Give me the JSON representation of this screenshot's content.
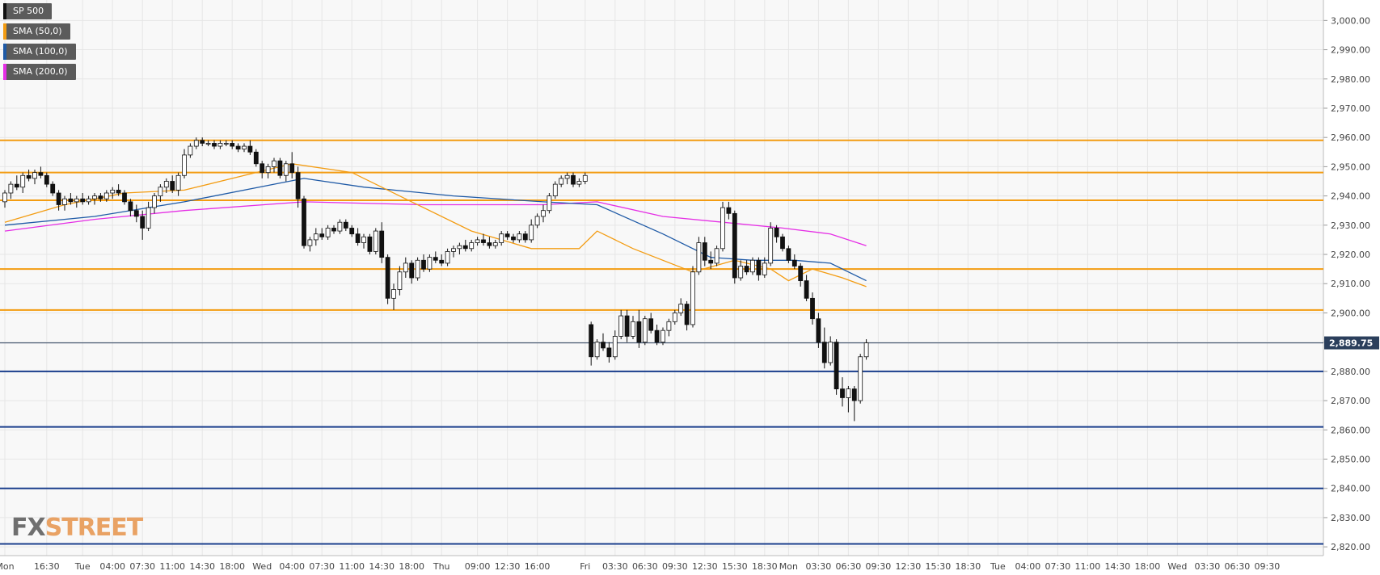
{
  "instrument": "SP 500",
  "legend": [
    {
      "label": "SP 500",
      "color": "#111111"
    },
    {
      "label": "SMA (50,0)",
      "color": "#f39c12"
    },
    {
      "label": "SMA (100,0)",
      "color": "#1f5aa6"
    },
    {
      "label": "SMA (200,0)",
      "color": "#e52ee5"
    }
  ],
  "watermark": {
    "part1": "FX",
    "part2": "STREET"
  },
  "last_price_label": "2,889.75",
  "colors": {
    "resistance": "#f39c12",
    "support": "#1a3e8c",
    "sma50": "#f39c12",
    "sma100": "#1f5aa6",
    "sma200": "#e52ee5",
    "grid": "#e6e6e6",
    "background": "#f8f8f8",
    "price_tag": "#2b3f5c"
  },
  "chart_data": {
    "type": "candlestick",
    "ylim": [
      2817,
      3007
    ],
    "y_ticks": [
      "2,820.00",
      "2,830.00",
      "2,840.00",
      "2,850.00",
      "2,860.00",
      "2,870.00",
      "2,880.00",
      "2,890.00",
      "2,900.00",
      "2,910.00",
      "2,920.00",
      "2,930.00",
      "2,940.00",
      "2,950.00",
      "2,960.00",
      "2,970.00",
      "2,980.00",
      "2,990.00",
      "3,000.00"
    ],
    "x_ticks": [
      "Mon",
      "16:30",
      "Tue",
      "04:00",
      "07:30",
      "11:00",
      "14:30",
      "18:00",
      "Wed",
      "04:00",
      "07:30",
      "11:00",
      "14:30",
      "18:00",
      "Thu",
      "09:00",
      "12:30",
      "16:00",
      "Fri",
      "03:30",
      "06:30",
      "09:30",
      "12:30",
      "15:30",
      "18:30",
      "Mon",
      "03:30",
      "06:30",
      "09:30",
      "12:30",
      "15:30",
      "18:30",
      "Tue",
      "04:00",
      "07:30",
      "11:00",
      "14:30",
      "18:00",
      "Wed",
      "03:30",
      "06:30",
      "09:30"
    ],
    "x_tick_index": [
      0,
      7,
      13,
      18,
      23,
      28,
      33,
      38,
      43,
      48,
      53,
      58,
      63,
      68,
      73,
      79,
      84,
      89,
      97,
      102,
      107,
      112,
      117,
      122,
      127,
      131,
      136,
      141,
      146,
      151,
      156,
      161,
      166,
      171,
      176,
      181,
      186,
      191,
      196,
      201,
      206,
      211
    ],
    "resistance_levels": [
      2959,
      2948,
      2938.5,
      2915,
      2901
    ],
    "support_levels": [
      2880,
      2861,
      2840,
      2821
    ],
    "last_price": 2889.75,
    "candles": [
      {
        "o": 2938,
        "h": 2942,
        "l": 2936,
        "c": 2941
      },
      {
        "o": 2941,
        "h": 2945,
        "l": 2939,
        "c": 2944
      },
      {
        "o": 2944,
        "h": 2947,
        "l": 2942,
        "c": 2943
      },
      {
        "o": 2943,
        "h": 2948,
        "l": 2941,
        "c": 2947
      },
      {
        "o": 2947,
        "h": 2949,
        "l": 2945,
        "c": 2946
      },
      {
        "o": 2946,
        "h": 2949,
        "l": 2944,
        "c": 2948
      },
      {
        "o": 2948,
        "h": 2950,
        "l": 2946,
        "c": 2947
      },
      {
        "o": 2947,
        "h": 2948,
        "l": 2943,
        "c": 2944
      },
      {
        "o": 2944,
        "h": 2945,
        "l": 2940,
        "c": 2941
      },
      {
        "o": 2941,
        "h": 2942,
        "l": 2935,
        "c": 2937
      },
      {
        "o": 2937,
        "h": 2940,
        "l": 2935,
        "c": 2939
      },
      {
        "o": 2939,
        "h": 2941,
        "l": 2937,
        "c": 2938
      },
      {
        "o": 2938,
        "h": 2940,
        "l": 2936,
        "c": 2939
      },
      {
        "o": 2939,
        "h": 2941,
        "l": 2937,
        "c": 2938
      },
      {
        "o": 2938,
        "h": 2940,
        "l": 2937,
        "c": 2939
      },
      {
        "o": 2939,
        "h": 2941,
        "l": 2937,
        "c": 2940
      },
      {
        "o": 2940,
        "h": 2941,
        "l": 2938,
        "c": 2939
      },
      {
        "o": 2939,
        "h": 2942,
        "l": 2938,
        "c": 2941
      },
      {
        "o": 2941,
        "h": 2943,
        "l": 2939,
        "c": 2942
      },
      {
        "o": 2942,
        "h": 2944,
        "l": 2940,
        "c": 2941
      },
      {
        "o": 2941,
        "h": 2942,
        "l": 2937,
        "c": 2938
      },
      {
        "o": 2938,
        "h": 2939,
        "l": 2933,
        "c": 2935
      },
      {
        "o": 2935,
        "h": 2937,
        "l": 2931,
        "c": 2933
      },
      {
        "o": 2933,
        "h": 2935,
        "l": 2925,
        "c": 2929
      },
      {
        "o": 2929,
        "h": 2938,
        "l": 2928,
        "c": 2936
      },
      {
        "o": 2936,
        "h": 2941,
        "l": 2934,
        "c": 2940
      },
      {
        "o": 2940,
        "h": 2944,
        "l": 2938,
        "c": 2943
      },
      {
        "o": 2943,
        "h": 2946,
        "l": 2941,
        "c": 2945
      },
      {
        "o": 2945,
        "h": 2947,
        "l": 2941,
        "c": 2942
      },
      {
        "o": 2942,
        "h": 2948,
        "l": 2940,
        "c": 2947
      },
      {
        "o": 2947,
        "h": 2956,
        "l": 2946,
        "c": 2954
      },
      {
        "o": 2954,
        "h": 2958,
        "l": 2953,
        "c": 2957
      },
      {
        "o": 2957,
        "h": 2960,
        "l": 2956,
        "c": 2959
      },
      {
        "o": 2959,
        "h": 2960,
        "l": 2957,
        "c": 2958
      },
      {
        "o": 2958,
        "h": 2959,
        "l": 2957,
        "c": 2958
      },
      {
        "o": 2958,
        "h": 2959,
        "l": 2956,
        "c": 2957
      },
      {
        "o": 2957,
        "h": 2959,
        "l": 2956,
        "c": 2958
      },
      {
        "o": 2958,
        "h": 2959,
        "l": 2957,
        "c": 2958
      },
      {
        "o": 2958,
        "h": 2959,
        "l": 2956,
        "c": 2957
      },
      {
        "o": 2957,
        "h": 2958,
        "l": 2955,
        "c": 2956
      },
      {
        "o": 2956,
        "h": 2958,
        "l": 2955,
        "c": 2957
      },
      {
        "o": 2957,
        "h": 2959,
        "l": 2954,
        "c": 2955
      },
      {
        "o": 2955,
        "h": 2956,
        "l": 2950,
        "c": 2951
      },
      {
        "o": 2951,
        "h": 2952,
        "l": 2946,
        "c": 2948
      },
      {
        "o": 2948,
        "h": 2951,
        "l": 2946,
        "c": 2950
      },
      {
        "o": 2950,
        "h": 2953,
        "l": 2948,
        "c": 2952
      },
      {
        "o": 2952,
        "h": 2953,
        "l": 2946,
        "c": 2947
      },
      {
        "o": 2947,
        "h": 2952,
        "l": 2945,
        "c": 2951
      },
      {
        "o": 2951,
        "h": 2955,
        "l": 2946,
        "c": 2948
      },
      {
        "o": 2948,
        "h": 2950,
        "l": 2936,
        "c": 2939
      },
      {
        "o": 2939,
        "h": 2940,
        "l": 2922,
        "c": 2923
      },
      {
        "o": 2923,
        "h": 2926,
        "l": 2921,
        "c": 2925
      },
      {
        "o": 2925,
        "h": 2929,
        "l": 2923,
        "c": 2927
      },
      {
        "o": 2927,
        "h": 2929,
        "l": 2925,
        "c": 2926
      },
      {
        "o": 2926,
        "h": 2930,
        "l": 2925,
        "c": 2929
      },
      {
        "o": 2929,
        "h": 2930,
        "l": 2927,
        "c": 2928
      },
      {
        "o": 2928,
        "h": 2932,
        "l": 2927,
        "c": 2931
      },
      {
        "o": 2931,
        "h": 2932,
        "l": 2928,
        "c": 2929
      },
      {
        "o": 2929,
        "h": 2930,
        "l": 2926,
        "c": 2927
      },
      {
        "o": 2927,
        "h": 2929,
        "l": 2923,
        "c": 2924
      },
      {
        "o": 2924,
        "h": 2927,
        "l": 2922,
        "c": 2926
      },
      {
        "o": 2926,
        "h": 2927,
        "l": 2920,
        "c": 2921
      },
      {
        "o": 2921,
        "h": 2929,
        "l": 2920,
        "c": 2928
      },
      {
        "o": 2928,
        "h": 2931,
        "l": 2917,
        "c": 2919
      },
      {
        "o": 2919,
        "h": 2920,
        "l": 2903,
        "c": 2905
      },
      {
        "o": 2905,
        "h": 2910,
        "l": 2901,
        "c": 2908
      },
      {
        "o": 2908,
        "h": 2916,
        "l": 2906,
        "c": 2914
      },
      {
        "o": 2914,
        "h": 2919,
        "l": 2912,
        "c": 2917
      },
      {
        "o": 2917,
        "h": 2918,
        "l": 2910,
        "c": 2912
      },
      {
        "o": 2912,
        "h": 2919,
        "l": 2911,
        "c": 2918
      },
      {
        "o": 2918,
        "h": 2920,
        "l": 2914,
        "c": 2915
      },
      {
        "o": 2915,
        "h": 2920,
        "l": 2914,
        "c": 2919
      },
      {
        "o": 2919,
        "h": 2921,
        "l": 2917,
        "c": 2918
      },
      {
        "o": 2918,
        "h": 2920,
        "l": 2916,
        "c": 2917
      },
      {
        "o": 2917,
        "h": 2922,
        "l": 2916,
        "c": 2921
      },
      {
        "o": 2921,
        "h": 2923,
        "l": 2919,
        "c": 2922
      },
      {
        "o": 2922,
        "h": 2924,
        "l": 2920,
        "c": 2923
      },
      {
        "o": 2923,
        "h": 2925,
        "l": 2921,
        "c": 2922
      },
      {
        "o": 2922,
        "h": 2925,
        "l": 2921,
        "c": 2924
      },
      {
        "o": 2924,
        "h": 2926,
        "l": 2923,
        "c": 2925
      },
      {
        "o": 2925,
        "h": 2927,
        "l": 2923,
        "c": 2924
      },
      {
        "o": 2924,
        "h": 2926,
        "l": 2922,
        "c": 2923
      },
      {
        "o": 2923,
        "h": 2925,
        "l": 2922,
        "c": 2924
      },
      {
        "o": 2924,
        "h": 2928,
        "l": 2923,
        "c": 2927
      },
      {
        "o": 2927,
        "h": 2928,
        "l": 2925,
        "c": 2926
      },
      {
        "o": 2926,
        "h": 2927,
        "l": 2924,
        "c": 2925
      },
      {
        "o": 2925,
        "h": 2928,
        "l": 2924,
        "c": 2927
      },
      {
        "o": 2927,
        "h": 2928,
        "l": 2924,
        "c": 2925
      },
      {
        "o": 2925,
        "h": 2932,
        "l": 2924,
        "c": 2930
      },
      {
        "o": 2930,
        "h": 2934,
        "l": 2929,
        "c": 2933
      },
      {
        "o": 2933,
        "h": 2937,
        "l": 2931,
        "c": 2935
      },
      {
        "o": 2935,
        "h": 2941,
        "l": 2934,
        "c": 2940
      },
      {
        "o": 2940,
        "h": 2945,
        "l": 2939,
        "c": 2944
      },
      {
        "o": 2944,
        "h": 2947,
        "l": 2943,
        "c": 2946
      },
      {
        "o": 2946,
        "h": 2948,
        "l": 2944,
        "c": 2947
      },
      {
        "o": 2947,
        "h": 2948,
        "l": 2943,
        "c": 2944
      },
      {
        "o": 2944,
        "h": 2946,
        "l": 2943,
        "c": 2945
      },
      {
        "o": 2945,
        "h": 2948,
        "l": 2944,
        "c": 2947
      },
      {
        "o": 2896,
        "h": 2897,
        "l": 2882,
        "c": 2885
      },
      {
        "o": 2885,
        "h": 2891,
        "l": 2884,
        "c": 2890
      },
      {
        "o": 2890,
        "h": 2893,
        "l": 2887,
        "c": 2888
      },
      {
        "o": 2888,
        "h": 2890,
        "l": 2883,
        "c": 2885
      },
      {
        "o": 2885,
        "h": 2894,
        "l": 2884,
        "c": 2892
      },
      {
        "o": 2892,
        "h": 2901,
        "l": 2891,
        "c": 2899
      },
      {
        "o": 2899,
        "h": 2901,
        "l": 2890,
        "c": 2892
      },
      {
        "o": 2892,
        "h": 2899,
        "l": 2891,
        "c": 2897
      },
      {
        "o": 2897,
        "h": 2901,
        "l": 2888,
        "c": 2890
      },
      {
        "o": 2890,
        "h": 2899,
        "l": 2889,
        "c": 2898
      },
      {
        "o": 2898,
        "h": 2900,
        "l": 2893,
        "c": 2894
      },
      {
        "o": 2894,
        "h": 2896,
        "l": 2889,
        "c": 2890
      },
      {
        "o": 2890,
        "h": 2895,
        "l": 2889,
        "c": 2894
      },
      {
        "o": 2894,
        "h": 2898,
        "l": 2892,
        "c": 2897
      },
      {
        "o": 2897,
        "h": 2901,
        "l": 2896,
        "c": 2900
      },
      {
        "o": 2900,
        "h": 2905,
        "l": 2899,
        "c": 2903
      },
      {
        "o": 2903,
        "h": 2904,
        "l": 2894,
        "c": 2896
      },
      {
        "o": 2896,
        "h": 2916,
        "l": 2895,
        "c": 2914
      },
      {
        "o": 2914,
        "h": 2926,
        "l": 2913,
        "c": 2924
      },
      {
        "o": 2924,
        "h": 2926,
        "l": 2916,
        "c": 2918
      },
      {
        "o": 2918,
        "h": 2921,
        "l": 2915,
        "c": 2917
      },
      {
        "o": 2917,
        "h": 2923,
        "l": 2916,
        "c": 2922
      },
      {
        "o": 2922,
        "h": 2938,
        "l": 2921,
        "c": 2936
      },
      {
        "o": 2936,
        "h": 2938,
        "l": 2932,
        "c": 2934
      },
      {
        "o": 2934,
        "h": 2935,
        "l": 2910,
        "c": 2912
      },
      {
        "o": 2912,
        "h": 2918,
        "l": 2911,
        "c": 2916
      },
      {
        "o": 2916,
        "h": 2918,
        "l": 2913,
        "c": 2914
      },
      {
        "o": 2914,
        "h": 2919,
        "l": 2913,
        "c": 2918
      },
      {
        "o": 2918,
        "h": 2919,
        "l": 2911,
        "c": 2913
      },
      {
        "o": 2913,
        "h": 2919,
        "l": 2912,
        "c": 2917
      },
      {
        "o": 2917,
        "h": 2931,
        "l": 2916,
        "c": 2929
      },
      {
        "o": 2929,
        "h": 2930,
        "l": 2924,
        "c": 2926
      },
      {
        "o": 2926,
        "h": 2927,
        "l": 2921,
        "c": 2922
      },
      {
        "o": 2922,
        "h": 2923,
        "l": 2917,
        "c": 2918
      },
      {
        "o": 2918,
        "h": 2920,
        "l": 2915,
        "c": 2916
      },
      {
        "o": 2916,
        "h": 2917,
        "l": 2909,
        "c": 2911
      },
      {
        "o": 2911,
        "h": 2913,
        "l": 2904,
        "c": 2905
      },
      {
        "o": 2905,
        "h": 2907,
        "l": 2896,
        "c": 2898
      },
      {
        "o": 2898,
        "h": 2900,
        "l": 2888,
        "c": 2890
      },
      {
        "o": 2890,
        "h": 2895,
        "l": 2881,
        "c": 2883
      },
      {
        "o": 2883,
        "h": 2892,
        "l": 2882,
        "c": 2890
      },
      {
        "o": 2890,
        "h": 2891,
        "l": 2872,
        "c": 2874
      },
      {
        "o": 2874,
        "h": 2878,
        "l": 2868,
        "c": 2871
      },
      {
        "o": 2871,
        "h": 2875,
        "l": 2866,
        "c": 2874
      },
      {
        "o": 2874,
        "h": 2875,
        "l": 2863,
        "c": 2870
      },
      {
        "o": 2870,
        "h": 2886,
        "l": 2869,
        "c": 2885
      },
      {
        "o": 2885,
        "h": 2891,
        "l": 2884,
        "c": 2889.75
      }
    ],
    "sma50": [
      [
        0,
        2931
      ],
      [
        10,
        2937
      ],
      [
        20,
        2941
      ],
      [
        30,
        2942
      ],
      [
        40,
        2947
      ],
      [
        48,
        2951
      ],
      [
        58,
        2948
      ],
      [
        68,
        2938
      ],
      [
        78,
        2928
      ],
      [
        88,
        2922
      ],
      [
        96,
        2922
      ],
      [
        99,
        2928
      ],
      [
        105,
        2922
      ],
      [
        115,
        2914
      ],
      [
        122,
        2918
      ],
      [
        128,
        2915
      ],
      [
        131,
        2911
      ],
      [
        135,
        2915
      ],
      [
        140,
        2912
      ],
      [
        144,
        2909
      ]
    ],
    "sma100": [
      [
        0,
        2930
      ],
      [
        15,
        2933
      ],
      [
        30,
        2938
      ],
      [
        45,
        2944
      ],
      [
        50,
        2946
      ],
      [
        60,
        2943
      ],
      [
        75,
        2940
      ],
      [
        90,
        2938
      ],
      [
        99,
        2937
      ],
      [
        110,
        2927
      ],
      [
        118,
        2919
      ],
      [
        125,
        2918
      ],
      [
        132,
        2918
      ],
      [
        138,
        2917
      ],
      [
        144,
        2911
      ]
    ],
    "sma200": [
      [
        0,
        2928
      ],
      [
        15,
        2932
      ],
      [
        30,
        2935
      ],
      [
        50,
        2938
      ],
      [
        70,
        2937
      ],
      [
        90,
        2937
      ],
      [
        99,
        2938
      ],
      [
        110,
        2933
      ],
      [
        120,
        2931
      ],
      [
        130,
        2929
      ],
      [
        138,
        2927
      ],
      [
        144,
        2923
      ]
    ]
  }
}
